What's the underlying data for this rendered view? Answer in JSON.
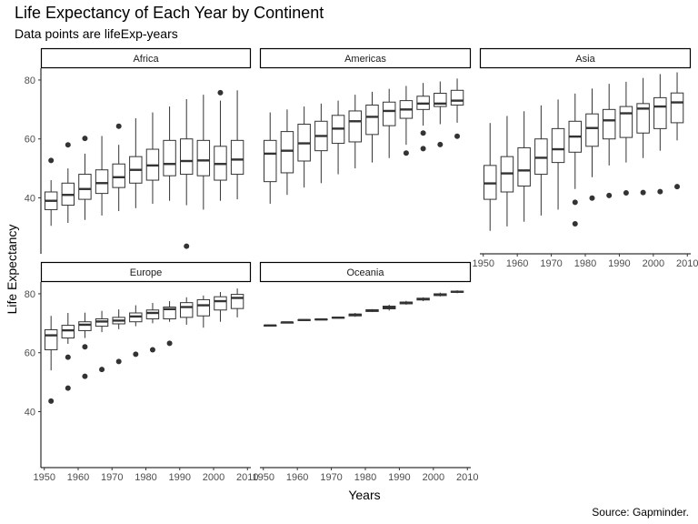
{
  "chart_data": {
    "type": "boxplot",
    "title": "Life Expectancy of Each Year by Continent",
    "subtitle": "Data points are lifeExp-years",
    "caption": "Source: Gapminder.",
    "xlabel": "Years",
    "ylabel": "Life Expectancy",
    "x_ticks": [
      1950,
      1960,
      1970,
      1980,
      1990,
      2000,
      2010
    ],
    "y_ticks": [
      40,
      60,
      80
    ],
    "xlim": [
      1949,
      2011
    ],
    "ylim": [
      21,
      84
    ],
    "facets": [
      {
        "name": "Africa",
        "boxes": [
          {
            "year": 1952,
            "min": 30.5,
            "q1": 36,
            "median": 39,
            "q3": 42,
            "max": 46,
            "outliers": [
              52.7
            ]
          },
          {
            "year": 1957,
            "min": 31.5,
            "q1": 37.5,
            "median": 41,
            "q3": 45,
            "max": 50,
            "outliers": [
              58
            ]
          },
          {
            "year": 1962,
            "min": 32.5,
            "q1": 39.5,
            "median": 43,
            "q3": 48,
            "max": 55,
            "outliers": [
              60.2
            ]
          },
          {
            "year": 1967,
            "min": 34,
            "q1": 41.5,
            "median": 45,
            "q3": 49.5,
            "max": 61,
            "outliers": []
          },
          {
            "year": 1972,
            "min": 35.5,
            "q1": 43.5,
            "median": 47,
            "q3": 51.5,
            "max": 58,
            "outliers": [
              64.3
            ]
          },
          {
            "year": 1977,
            "min": 36.5,
            "q1": 45,
            "median": 49.5,
            "q3": 54,
            "max": 67,
            "outliers": []
          },
          {
            "year": 1982,
            "min": 38,
            "q1": 46,
            "median": 51,
            "q3": 56.5,
            "max": 69,
            "outliers": []
          },
          {
            "year": 1987,
            "min": 39,
            "q1": 47.5,
            "median": 51.5,
            "q3": 59.5,
            "max": 71,
            "outliers": []
          },
          {
            "year": 1992,
            "min": 37.5,
            "q1": 48,
            "median": 52.5,
            "q3": 60,
            "max": 73.5,
            "outliers": [
              23.6
            ]
          },
          {
            "year": 1997,
            "min": 36,
            "q1": 47.5,
            "median": 52.7,
            "q3": 59.5,
            "max": 75,
            "outliers": []
          },
          {
            "year": 2002,
            "min": 39,
            "q1": 46,
            "median": 51.5,
            "q3": 57.5,
            "max": 73,
            "outliers": [
              75.7
            ]
          },
          {
            "year": 2007,
            "min": 39.5,
            "q1": 48,
            "median": 53,
            "q3": 59.5,
            "max": 76.5,
            "outliers": []
          }
        ]
      },
      {
        "name": "Americas",
        "boxes": [
          {
            "year": 1952,
            "min": 38,
            "q1": 45.5,
            "median": 55,
            "q3": 59.5,
            "max": 69,
            "outliers": []
          },
          {
            "year": 1957,
            "min": 41,
            "q1": 48.5,
            "median": 56,
            "q3": 62.5,
            "max": 70,
            "outliers": []
          },
          {
            "year": 1962,
            "min": 43.5,
            "q1": 52.5,
            "median": 58.5,
            "q3": 65,
            "max": 71,
            "outliers": []
          },
          {
            "year": 1967,
            "min": 45,
            "q1": 56,
            "median": 61,
            "q3": 66,
            "max": 72,
            "outliers": []
          },
          {
            "year": 1972,
            "min": 48,
            "q1": 58.5,
            "median": 63.5,
            "q3": 68,
            "max": 73,
            "outliers": []
          },
          {
            "year": 1977,
            "min": 50,
            "q1": 59,
            "median": 66,
            "q3": 69.5,
            "max": 75,
            "outliers": []
          },
          {
            "year": 1982,
            "min": 52,
            "q1": 61.5,
            "median": 67.5,
            "q3": 71.5,
            "max": 76,
            "outliers": []
          },
          {
            "year": 1987,
            "min": 53.5,
            "q1": 64.5,
            "median": 69.5,
            "q3": 72.5,
            "max": 77,
            "outliers": []
          },
          {
            "year": 1992,
            "min": 58,
            "q1": 67,
            "median": 70,
            "q3": 73,
            "max": 78,
            "outliers": [
              55.2
            ]
          },
          {
            "year": 1997,
            "min": 64.5,
            "q1": 70,
            "median": 72,
            "q3": 74.5,
            "max": 79,
            "outliers": [
              56.7,
              62
            ]
          },
          {
            "year": 2002,
            "min": 65,
            "q1": 71,
            "median": 72,
            "q3": 75.5,
            "max": 79.5,
            "outliers": [
              58.1
            ]
          },
          {
            "year": 2007,
            "min": 65.5,
            "q1": 71.5,
            "median": 73,
            "q3": 76.5,
            "max": 80.5,
            "outliers": [
              60.9
            ]
          }
        ]
      },
      {
        "name": "Asia",
        "boxes": [
          {
            "year": 1952,
            "min": 28.8,
            "q1": 39.5,
            "median": 44.9,
            "q3": 51,
            "max": 65.4,
            "outliers": []
          },
          {
            "year": 1957,
            "min": 30.3,
            "q1": 42,
            "median": 48.3,
            "q3": 54,
            "max": 67.8,
            "outliers": []
          },
          {
            "year": 1962,
            "min": 31.9,
            "q1": 44,
            "median": 49.3,
            "q3": 57,
            "max": 69.4,
            "outliers": []
          },
          {
            "year": 1967,
            "min": 34,
            "q1": 48,
            "median": 53.6,
            "q3": 60,
            "max": 71.4,
            "outliers": []
          },
          {
            "year": 1972,
            "min": 36,
            "q1": 52,
            "median": 56.5,
            "q3": 63.5,
            "max": 73.4,
            "outliers": []
          },
          {
            "year": 1977,
            "min": 43,
            "q1": 55.5,
            "median": 60.8,
            "q3": 66,
            "max": 75.4,
            "outliers": [
              31.2,
              38.5
            ]
          },
          {
            "year": 1982,
            "min": 47,
            "q1": 57.5,
            "median": 63.7,
            "q3": 68.5,
            "max": 77.1,
            "outliers": [
              39.9
            ]
          },
          {
            "year": 1987,
            "min": 51,
            "q1": 60,
            "median": 66.3,
            "q3": 70,
            "max": 78.7,
            "outliers": [
              40.8
            ]
          },
          {
            "year": 1992,
            "min": 52,
            "q1": 60.5,
            "median": 68.7,
            "q3": 71,
            "max": 79.4,
            "outliers": [
              41.7
            ]
          },
          {
            "year": 1997,
            "min": 53.5,
            "q1": 62,
            "median": 70.3,
            "q3": 72,
            "max": 80.7,
            "outliers": [
              41.8
            ]
          },
          {
            "year": 2002,
            "min": 56,
            "q1": 63.5,
            "median": 71,
            "q3": 74,
            "max": 82,
            "outliers": [
              42.1
            ]
          },
          {
            "year": 2007,
            "min": 59.5,
            "q1": 65.5,
            "median": 72.4,
            "q3": 75.6,
            "max": 82.6,
            "outliers": [
              43.8
            ]
          }
        ]
      },
      {
        "name": "Europe",
        "boxes": [
          {
            "year": 1952,
            "min": 54,
            "q1": 61,
            "median": 65.9,
            "q3": 67.8,
            "max": 72.5,
            "outliers": [
              43.6
            ]
          },
          {
            "year": 1957,
            "min": 63,
            "q1": 65,
            "median": 67.6,
            "q3": 69.3,
            "max": 73.5,
            "outliers": [
              48,
              58.5
            ]
          },
          {
            "year": 1962,
            "min": 65,
            "q1": 67.5,
            "median": 69.5,
            "q3": 70.5,
            "max": 73.6,
            "outliers": [
              52,
              62
            ]
          },
          {
            "year": 1967,
            "min": 67,
            "q1": 69,
            "median": 70.6,
            "q3": 71.5,
            "max": 74.2,
            "outliers": [
              54.3
            ]
          },
          {
            "year": 1972,
            "min": 68,
            "q1": 69.8,
            "median": 70.9,
            "q3": 72,
            "max": 74.7,
            "outliers": [
              57
            ]
          },
          {
            "year": 1977,
            "min": 69,
            "q1": 70.5,
            "median": 72.3,
            "q3": 73.5,
            "max": 76.1,
            "outliers": [
              59.5
            ]
          },
          {
            "year": 1982,
            "min": 70,
            "q1": 71.5,
            "median": 73.5,
            "q3": 74.5,
            "max": 76.9,
            "outliers": [
              61
            ]
          },
          {
            "year": 1987,
            "min": 70.5,
            "q1": 71.5,
            "median": 74.8,
            "q3": 75.5,
            "max": 77.5,
            "outliers": [
              63.2
            ]
          },
          {
            "year": 1992,
            "min": 69.5,
            "q1": 72,
            "median": 75.5,
            "q3": 77,
            "max": 78.8,
            "outliers": []
          },
          {
            "year": 1997,
            "min": 68.5,
            "q1": 72.5,
            "median": 76.1,
            "q3": 78,
            "max": 79.4,
            "outliers": []
          },
          {
            "year": 2002,
            "min": 70.5,
            "q1": 74.5,
            "median": 77.5,
            "q3": 79,
            "max": 80.6,
            "outliers": []
          },
          {
            "year": 2007,
            "min": 72,
            "q1": 75,
            "median": 78.6,
            "q3": 79.8,
            "max": 81.8,
            "outliers": []
          }
        ]
      },
      {
        "name": "Oceania",
        "boxes": [
          {
            "year": 1952,
            "min": 69.1,
            "q1": 69.2,
            "median": 69.25,
            "q3": 69.3,
            "max": 69.4,
            "outliers": []
          },
          {
            "year": 1957,
            "min": 70.3,
            "q1": 70.3,
            "median": 70.3,
            "q3": 70.3,
            "max": 70.3,
            "outliers": []
          },
          {
            "year": 1962,
            "min": 71.0,
            "q1": 71.0,
            "median": 71.1,
            "q3": 71.2,
            "max": 71.2,
            "outliers": []
          },
          {
            "year": 1967,
            "min": 71.1,
            "q1": 71.2,
            "median": 71.3,
            "q3": 71.4,
            "max": 71.5,
            "outliers": []
          },
          {
            "year": 1972,
            "min": 71.7,
            "q1": 71.8,
            "median": 71.9,
            "q3": 72.0,
            "max": 72.1,
            "outliers": []
          },
          {
            "year": 1977,
            "min": 72.2,
            "q1": 72.5,
            "median": 72.9,
            "q3": 73.1,
            "max": 73.5,
            "outliers": []
          },
          {
            "year": 1982,
            "min": 73.8,
            "q1": 74.0,
            "median": 74.3,
            "q3": 74.6,
            "max": 74.8,
            "outliers": []
          },
          {
            "year": 1987,
            "min": 74.3,
            "q1": 74.9,
            "median": 75.3,
            "q3": 75.8,
            "max": 76.3,
            "outliers": []
          },
          {
            "year": 1992,
            "min": 76.3,
            "q1": 76.6,
            "median": 76.9,
            "q3": 77.2,
            "max": 77.6,
            "outliers": []
          },
          {
            "year": 1997,
            "min": 77.5,
            "q1": 77.9,
            "median": 78.2,
            "q3": 78.5,
            "max": 78.8,
            "outliers": []
          },
          {
            "year": 2002,
            "min": 79.1,
            "q1": 79.4,
            "median": 79.7,
            "q3": 80.0,
            "max": 80.4,
            "outliers": []
          },
          {
            "year": 2007,
            "min": 80.2,
            "q1": 80.5,
            "median": 80.7,
            "q3": 80.9,
            "max": 81.2,
            "outliers": []
          }
        ]
      }
    ]
  }
}
